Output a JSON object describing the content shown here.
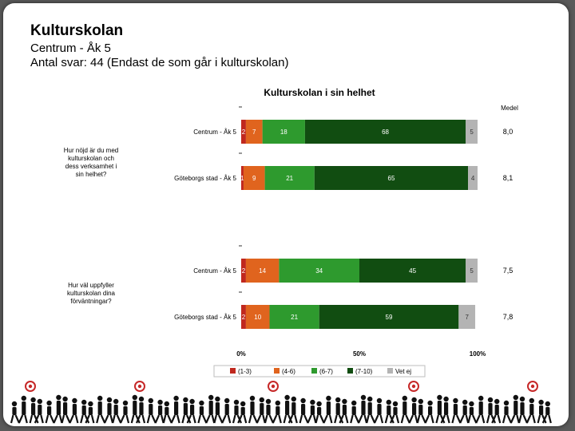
{
  "header": {
    "title": "Kulturskolan",
    "subtitle": "Centrum - Åk 5",
    "respondents": "Antal svar: 44 (Endast de som går i kulturskolan)"
  },
  "chart_data": {
    "type": "bar",
    "orientation": "horizontal-stacked",
    "title": "Kulturskolan i sin helhet",
    "mean_header": "Medel",
    "x_ticks": [
      "0%",
      "50%",
      "100%"
    ],
    "legend": [
      "(1-3)",
      "(4-6)",
      "(6-7)",
      "(7-10)",
      "Vet ej"
    ],
    "colors": [
      "#c0281e",
      "#e0641e",
      "#2e9a2e",
      "#114d11",
      "#b4b4b4"
    ],
    "questions": [
      {
        "label": "Hur nöjd är du med kulturskolan och dess verksamhet i sin helhet?",
        "rows": [
          {
            "label": "Centrum - Åk 5",
            "values": [
              2,
              7,
              18,
              68,
              5
            ],
            "mean": "8,0"
          },
          {
            "label": "Göteborgs stad - Åk 5",
            "values": [
              1,
              9,
              21,
              65,
              4
            ],
            "mean": "8,1"
          }
        ]
      },
      {
        "label": "Hur väl uppfyller kulturskolan dina förväntningar?",
        "rows": [
          {
            "label": "Centrum - Åk 5",
            "values": [
              2,
              14,
              34,
              45,
              5
            ],
            "mean": "7,5"
          },
          {
            "label": "Göteborgs stad - Åk 5",
            "values": [
              2,
              10,
              21,
              59,
              7
            ],
            "mean": "7,8"
          }
        ]
      }
    ]
  }
}
